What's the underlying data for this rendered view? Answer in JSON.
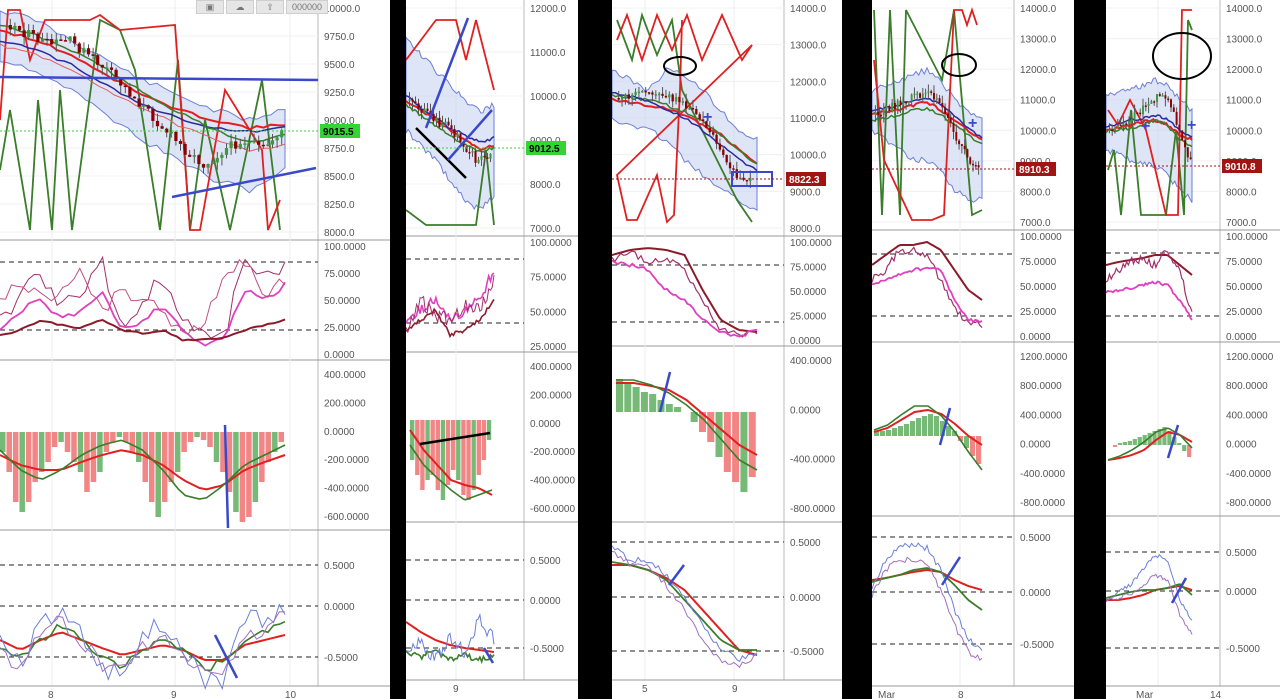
{
  "colors": {
    "up_candle": "#3c9a3c",
    "down_candle": "#8b0000",
    "green_line": "#3a7d2a",
    "red_line": "#e02020",
    "band_fill": "#c8d4f0",
    "band_line": "#6b7fd7",
    "annotation_blue": "#3949c9",
    "pink_line": "#e040c0",
    "maroon_line": "#8b1a2a",
    "hist_green": "#5fae5f",
    "hist_red": "#f07070",
    "price_tag_green": "#35d435",
    "price_tag_red": "#a01414"
  },
  "toolbar": {
    "icons": [
      "camera-icon",
      "cloud-icon",
      "upload-icon"
    ],
    "value": "000000"
  },
  "panels": [
    {
      "id": "p1",
      "price_ticks": [
        "10000.0",
        "9750.0",
        "9500.0",
        "9250.0",
        "9000.0",
        "8750.0",
        "8500.0",
        "8250.0",
        "8000.0"
      ],
      "price_tag": "9015.5",
      "price_tag_color": "green",
      "stoch_ticks": [
        "100.0000",
        "75.0000",
        "50.0000",
        "25.0000",
        "0.0000"
      ],
      "macd_ticks": [
        "400.0000",
        "200.0000",
        "0.0000",
        "-200.0000",
        "-400.0000",
        "-600.0000"
      ],
      "osc_ticks": [
        "0.5000",
        "0.0000",
        "-0.5000"
      ],
      "x_labels": [
        "8",
        "9",
        "10"
      ]
    },
    {
      "id": "p2",
      "price_ticks": [
        "12000.0",
        "11000.0",
        "10000.0",
        "9000.0",
        "8000.0",
        "7000.0"
      ],
      "price_tag": "9012.5",
      "price_tag_color": "green",
      "stoch_ticks": [
        "100.0000",
        "75.0000",
        "50.0000",
        "25.0000"
      ],
      "macd_ticks": [
        "400.0000",
        "200.0000",
        "0.0000",
        "-200.0000",
        "-400.0000",
        "-600.0000"
      ],
      "osc_ticks": [
        "0.5000",
        "0.0000",
        "-0.5000"
      ],
      "x_labels": [
        "9"
      ]
    },
    {
      "id": "p3",
      "price_ticks": [
        "14000.0",
        "13000.0",
        "12000.0",
        "11000.0",
        "10000.0",
        "9000.0",
        "8000.0"
      ],
      "price_tag": "8822.3",
      "price_tag_color": "red",
      "stoch_ticks": [
        "100.0000",
        "75.0000",
        "50.0000",
        "25.0000",
        "0.0000"
      ],
      "macd_ticks": [
        "400.0000",
        "0.0000",
        "-400.0000",
        "-800.0000"
      ],
      "osc_ticks": [
        "0.5000",
        "0.0000",
        "-0.5000"
      ],
      "x_labels": [
        "5",
        "9"
      ]
    },
    {
      "id": "p4",
      "price_ticks": [
        "14000.0",
        "13000.0",
        "12000.0",
        "11000.0",
        "10000.0",
        "9000.0",
        "8000.0",
        "7000.0"
      ],
      "price_tag": "8910.3",
      "price_tag_color": "red",
      "stoch_ticks": [
        "100.0000",
        "75.0000",
        "50.0000",
        "25.0000",
        "0.0000"
      ],
      "macd_ticks": [
        "1200.0000",
        "800.0000",
        "400.0000",
        "0.0000",
        "-400.0000",
        "-800.0000"
      ],
      "osc_ticks": [
        "0.5000",
        "0.0000",
        "-0.5000"
      ],
      "x_labels": [
        "Mar",
        "8"
      ]
    },
    {
      "id": "p5",
      "price_ticks": [
        "14000.0",
        "13000.0",
        "12000.0",
        "11000.0",
        "10000.0",
        "9000.0",
        "8000.0",
        "7000.0"
      ],
      "price_tag": "9010.8",
      "price_tag_color": "red",
      "stoch_ticks": [
        "100.0000",
        "75.0000",
        "50.0000",
        "25.0000",
        "0.0000"
      ],
      "macd_ticks": [
        "1200.0000",
        "800.0000",
        "400.0000",
        "0.0000",
        "-400.0000",
        "-800.0000"
      ],
      "osc_ticks": [
        "0.5000",
        "0.0000",
        "-0.5000"
      ],
      "x_labels": [
        "Mar",
        "14"
      ]
    }
  ]
}
